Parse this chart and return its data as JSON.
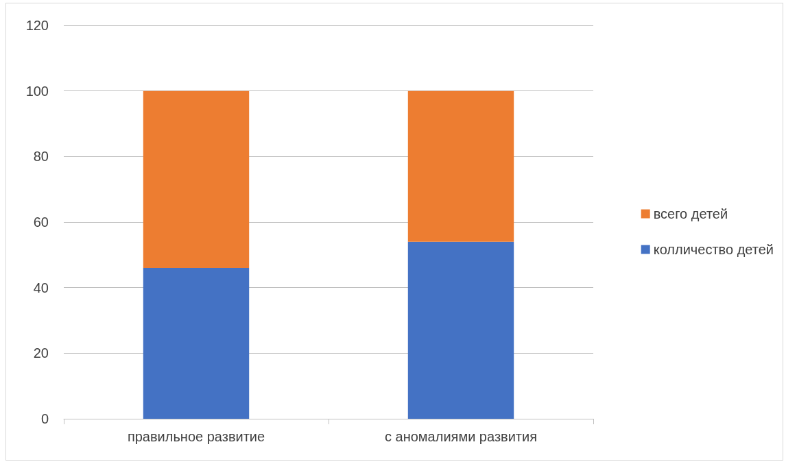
{
  "chart_data": {
    "type": "bar",
    "stacked": true,
    "categories": [
      "правильное развитие",
      "с аномалиями развития"
    ],
    "series": [
      {
        "name": "колличество детей",
        "color": "#4472c4",
        "values": [
          46,
          54
        ]
      },
      {
        "name": "всего детей",
        "color": "#ed7d31",
        "values": [
          54,
          46
        ]
      }
    ],
    "ylim": [
      0,
      120
    ],
    "yticks": [
      0,
      20,
      40,
      60,
      80,
      100,
      120
    ],
    "grid": "y",
    "legend": "right"
  }
}
